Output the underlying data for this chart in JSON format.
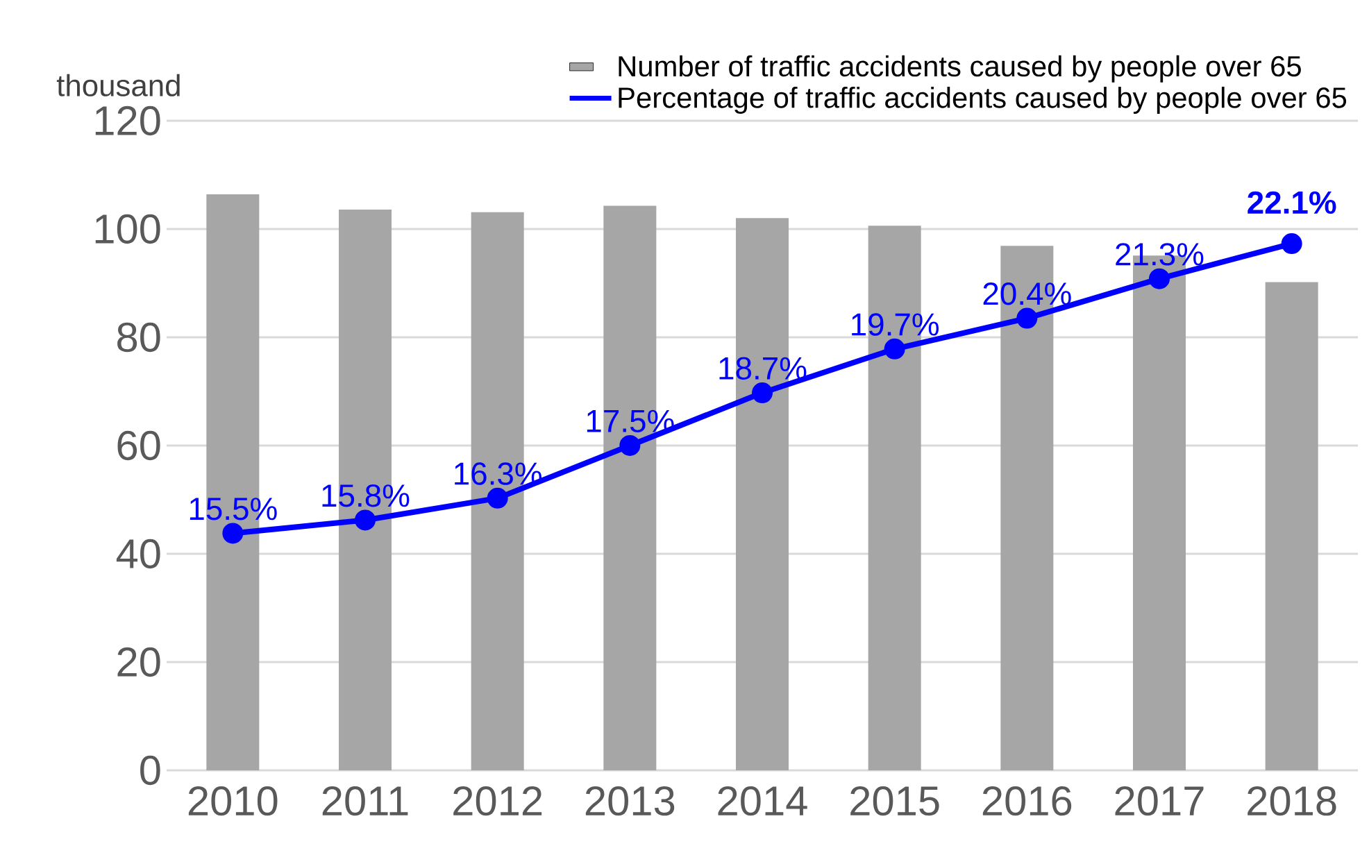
{
  "chart_data": {
    "type": "bar",
    "ylabel": "thousand",
    "categories": [
      "2010",
      "2011",
      "2012",
      "2013",
      "2014",
      "2015",
      "2016",
      "2017",
      "2018"
    ],
    "series": [
      {
        "name": "Number of traffic accidents caused by people over 65",
        "color": "#a6a6a6",
        "values": [
          106.4,
          103.6,
          103.1,
          104.3,
          102.0,
          100.6,
          96.9,
          95.1,
          90.2
        ]
      },
      {
        "name": "Percentage of traffic accidents caused by people over 65",
        "type": "line",
        "axis": "y2",
        "color": "#0000ff",
        "values": [
          15.5,
          15.8,
          16.3,
          17.5,
          18.7,
          19.7,
          20.4,
          21.3,
          22.1
        ],
        "value_labels": [
          "15.5%",
          "15.8%",
          "16.3%",
          "17.5%",
          "18.7%",
          "19.7%",
          "20.4%",
          "21.3%",
          "**22.1%**"
        ]
      }
    ],
    "ylim": [
      0,
      120
    ],
    "yticks": [
      0,
      20,
      40,
      60,
      80,
      100,
      120
    ],
    "y2lim": [
      10.1,
      24.9
    ],
    "grid": "y",
    "legend": "top right",
    "marker": "circle"
  }
}
